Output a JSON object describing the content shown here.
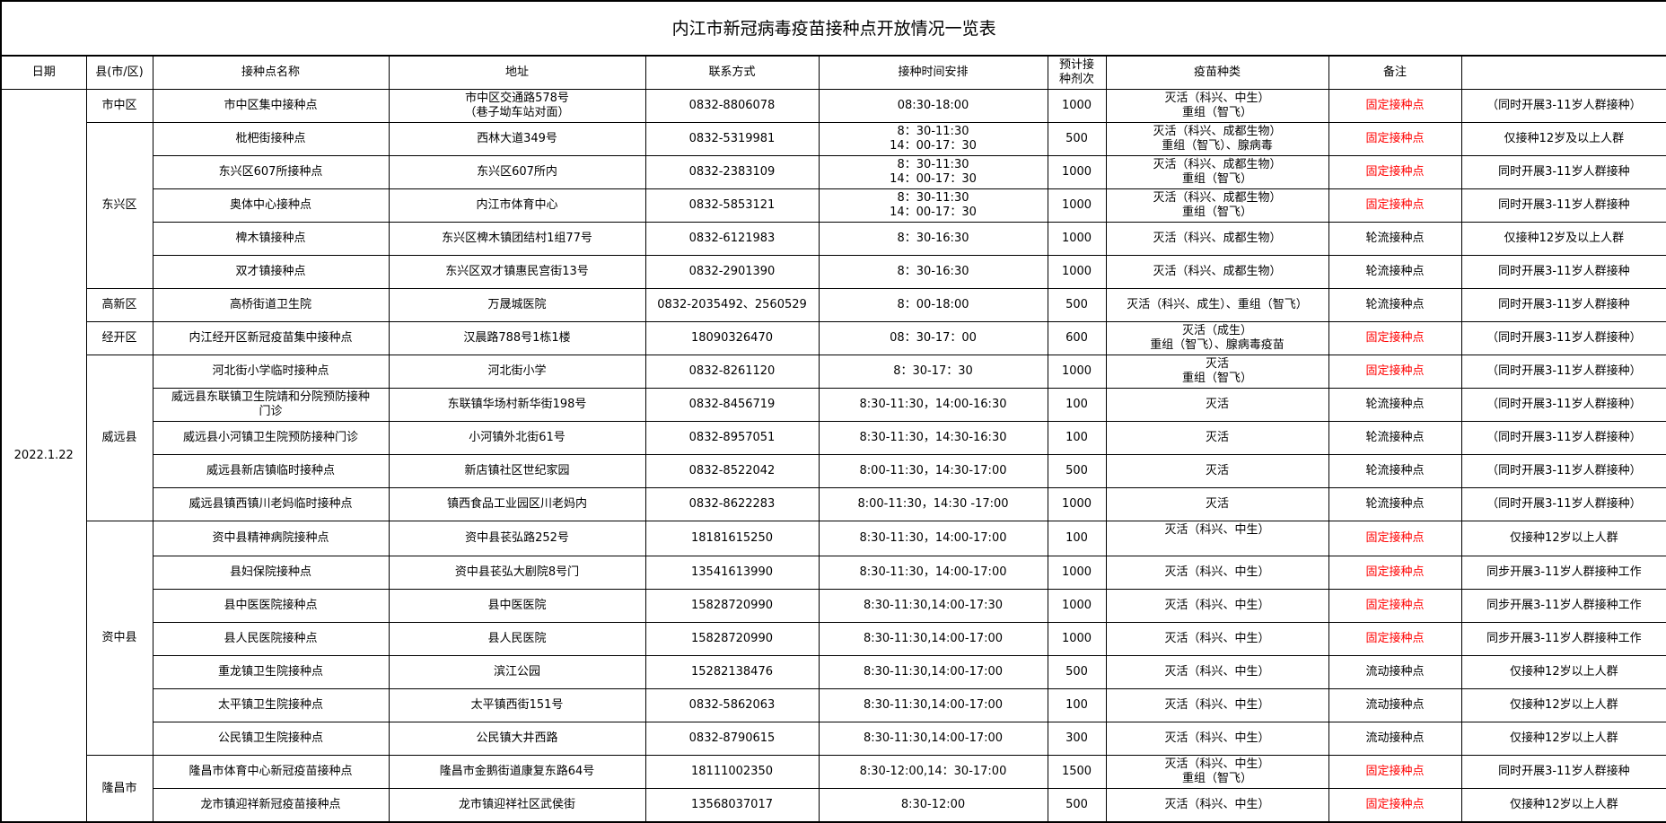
{
  "title": "内江市新冠病毒疫苗接种点开放情况一览表",
  "headers": [
    "日期",
    "县(市/区)",
    "接种点名称",
    "地址",
    "联系方式",
    "接种时间安排",
    "预计接\n种剂次",
    "疫苗种类",
    "备注",
    ""
  ],
  "colors": {
    "fixed_site_text": "#ff0000",
    "border": "#000000"
  },
  "date": "2022.1.22",
  "groups": [
    {
      "county": "市中区",
      "rows": [
        {
          "name": "市中区集中接种点",
          "address": "市中区交通路578号\n（巷子坳车站对面）",
          "contact": "0832-8806078",
          "time": "08:30-18:00",
          "doses": "1000",
          "vaccine": "灭活（科兴、中生）\n重组（智飞）",
          "type": "固定接种点",
          "note": "（同时开展3-11岁人群接种）"
        }
      ]
    },
    {
      "county": "东兴区",
      "rows": [
        {
          "name": "枇杷街接种点",
          "address": "西林大道349号",
          "contact": "0832-5319981",
          "time": "8：30-11:30\n14：00-17：30",
          "doses": "500",
          "vaccine": "灭活（科兴、成都生物）\n重组（智飞）、腺病毒",
          "type": "固定接种点",
          "note": "仅接种12岁及以上人群"
        },
        {
          "name": "东兴区607所接种点",
          "address": "东兴区607所内",
          "contact": "0832-2383109",
          "time": "8：30-11:30\n14：00-17：30",
          "doses": "1000",
          "vaccine": "灭活（科兴、成都生物）\n重组（智飞）",
          "type": "固定接种点",
          "note": "同时开展3-11岁人群接种"
        },
        {
          "name": "奥体中心接种点",
          "address": "内江市体育中心",
          "contact": "0832-5853121",
          "time": "8：30-11:30\n14：00-17：30",
          "doses": "1000",
          "vaccine": "灭活（科兴、成都生物）\n重组（智飞）",
          "type": "固定接种点",
          "note": "同时开展3-11岁人群接种"
        },
        {
          "name": "椑木镇接种点",
          "address": "东兴区椑木镇团结村1组77号",
          "contact": "0832-6121983",
          "time": "8：30-16:30",
          "doses": "1000",
          "vaccine": "灭活（科兴、成都生物）",
          "type": "轮流接种点",
          "note": "仅接种12岁及以上人群"
        },
        {
          "name": "双才镇接种点",
          "address": "东兴区双才镇惠民宫街13号",
          "contact": "0832-2901390",
          "time": "8：30-16:30",
          "doses": "1000",
          "vaccine": "灭活（科兴、成都生物）",
          "type": "轮流接种点",
          "note": "同时开展3-11岁人群接种"
        }
      ]
    },
    {
      "county": "高新区",
      "rows": [
        {
          "name": "高桥街道卫生院",
          "address": "万晟城医院",
          "contact": "0832-2035492、2560529",
          "time": "8：00-18:00",
          "doses": "500",
          "vaccine": "灭活（科兴、成生）、重组（智飞）",
          "type": "轮流接种点",
          "note": "同时开展3-11岁人群接种"
        }
      ]
    },
    {
      "county": "经开区",
      "rows": [
        {
          "name": "内江经开区新冠疫苗集中接种点",
          "address": "汉晨路788号1栋1楼",
          "contact": "18090326470",
          "time": "08：30-17：00",
          "doses": "600",
          "vaccine": "灭活（成生）\n重组（智飞）、腺病毒疫苗",
          "type": "固定接种点",
          "note": "（同时开展3-11岁人群接种）"
        }
      ]
    },
    {
      "county": "威远县",
      "rows": [
        {
          "name": "河北街小学临时接种点",
          "address": "河北街小学",
          "contact": "0832-8261120",
          "time": "8：30-17：30",
          "doses": "1000",
          "vaccine": "灭活\n重组（智飞）",
          "type": "固定接种点",
          "note": "（同时开展3-11岁人群接种）"
        },
        {
          "name": "威远县东联镇卫生院靖和分院预防接种\n门诊",
          "address": "东联镇华场村新华街198号",
          "contact": "0832-8456719",
          "time": "8:30-11:30，14:00-16:30",
          "doses": "100",
          "vaccine": "灭活",
          "type": "轮流接种点",
          "note": "（同时开展3-11岁人群接种）"
        },
        {
          "name": "威远县小河镇卫生院预防接种门诊",
          "address": "小河镇外北街61号",
          "contact": "0832-8957051",
          "time": "8:30-11:30，14:30-16:30",
          "doses": "100",
          "vaccine": "灭活",
          "type": "轮流接种点",
          "note": "（同时开展3-11岁人群接种）"
        },
        {
          "name": "威远县新店镇临时接种点",
          "address": "新店镇社区世纪家园",
          "contact": "0832-8522042",
          "time": "8:00-11:30，14:30-17:00",
          "doses": "500",
          "vaccine": "灭活",
          "type": "轮流接种点",
          "note": "（同时开展3-11岁人群接种）"
        },
        {
          "name": "威远县镇西镇川老妈临时接种点",
          "address": "镇西食品工业园区川老妈内",
          "contact": "0832-8622283",
          "time": "8:00-11:30，14:30 -17:00",
          "doses": "1000",
          "vaccine": "灭活",
          "type": "轮流接种点",
          "note": "（同时开展3-11岁人群接种）"
        }
      ]
    },
    {
      "county": "资中县",
      "rows": [
        {
          "name": "资中县精神病院接种点",
          "address": "资中县苌弘路252号",
          "contact": "18181615250",
          "time": "8:30-11:30，14:00-17:00",
          "doses": "100",
          "vaccine": "灭活（科兴、中生）",
          "vaccine_top": true,
          "type": "固定接种点",
          "note": "仅接种12岁以上人群"
        },
        {
          "name": "县妇保院接种点",
          "address": "资中县苌弘大剧院8号门",
          "contact": "13541613990",
          "time": "8:30-11:30，14:00-17:00",
          "doses": "1000",
          "vaccine": "灭活（科兴、中生）",
          "type": "固定接种点",
          "note": "同步开展3-11岁人群接种工作"
        },
        {
          "name": "县中医医院接种点",
          "address": "县中医医院",
          "contact": "15828720990",
          "time": "8:30-11:30,14:00-17:30",
          "doses": "1000",
          "vaccine": "灭活（科兴、中生）",
          "type": "固定接种点",
          "note": "同步开展3-11岁人群接种工作"
        },
        {
          "name": "县人民医院接种点",
          "address": "县人民医院",
          "contact": "15828720990",
          "time": "8:30-11:30,14:00-17:00",
          "doses": "1000",
          "vaccine": "灭活（科兴、中生）",
          "type": "固定接种点",
          "note": "同步开展3-11岁人群接种工作"
        },
        {
          "name": "重龙镇卫生院接种点",
          "address": "滨江公园",
          "contact": "15282138476",
          "time": "8:30-11:30,14:00-17:00",
          "doses": "500",
          "vaccine": "灭活（科兴、中生）",
          "type": "流动接种点",
          "note": "仅接种12岁以上人群"
        },
        {
          "name": "太平镇卫生院接种点",
          "address": "太平镇西街151号",
          "contact": "0832-5862063",
          "time": "8:30-11:30,14:00-17:00",
          "doses": "100",
          "vaccine": "灭活（科兴、中生）",
          "type": "流动接种点",
          "note": "仅接种12岁以上人群"
        },
        {
          "name": "公民镇卫生院接种点",
          "address": "公民镇大井西路",
          "contact": "0832-8790615",
          "time": "8:30-11:30,14:00-17:00",
          "doses": "300",
          "vaccine": "灭活（科兴、中生）",
          "type": "流动接种点",
          "note": "仅接种12岁以上人群"
        }
      ]
    },
    {
      "county": "隆昌市",
      "rows": [
        {
          "name": "隆昌市体育中心新冠疫苗接种点",
          "address": "隆昌市金鹅街道康复东路64号",
          "contact": "18111002350",
          "time": "8:30-12:00,14：30-17:00",
          "doses": "1500",
          "vaccine": "灭活（科兴、中生）\n重组（智飞）",
          "type": "固定接种点",
          "note": "同时开展3-11岁人群接种"
        },
        {
          "name": "龙市镇迎祥新冠疫苗接种点",
          "address": "龙市镇迎祥社区武侯街",
          "contact": "13568037017",
          "time": "8:30-12:00",
          "doses": "500",
          "vaccine": "灭活（科兴、中生）",
          "type": "固定接种点",
          "note": "仅接种12岁以上人群"
        }
      ]
    }
  ]
}
